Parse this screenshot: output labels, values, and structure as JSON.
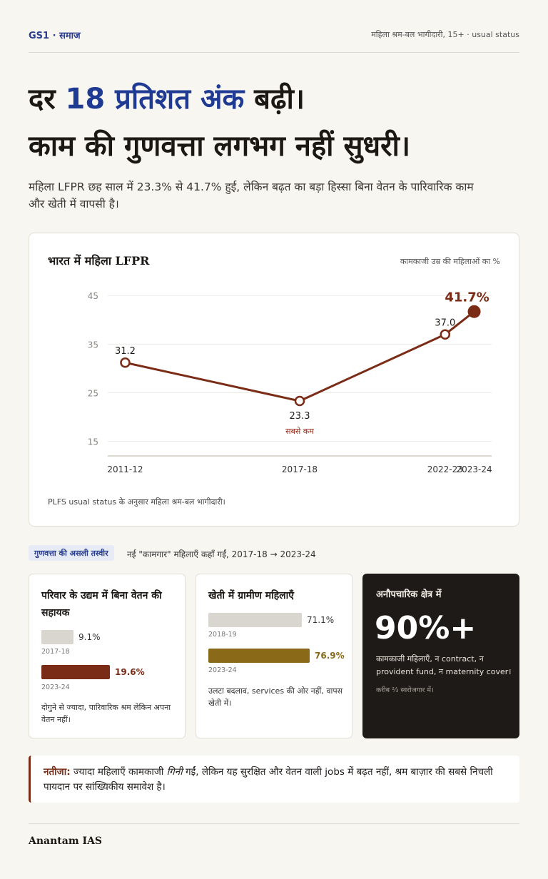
{
  "header": {
    "tag": "GS1 · समाज",
    "meta": "महिला श्रम-बल भागीदारी, 15+ · usual status"
  },
  "headline": {
    "line1_pre": "दर ",
    "line1_accent": "18 प्रतिशत अंक",
    "line1_post": " बढ़ी।",
    "line2": "काम की गुणवत्ता लगभग नहीं सुधरी।"
  },
  "subhead": "महिला LFPR छह साल में 23.3% से 41.7% हुई, लेकिन बढ़त का बड़ा हिस्सा बिना वेतन के पारिवारिक काम और खेती में वापसी है।",
  "chart_data": {
    "type": "line",
    "title": "भारत में महिला LFPR",
    "ylabel": "कामकाजी उम्र की महिलाओं का %",
    "categories": [
      "2011-12",
      "2017-18",
      "2022-23",
      "2023-24"
    ],
    "x_years": [
      2011.5,
      2017.5,
      2022.5,
      2023.5
    ],
    "series": [
      {
        "values": [
          31.2,
          23.3,
          37.0,
          41.7
        ]
      }
    ],
    "point_labels": [
      "31.2",
      "23.3",
      "37.0",
      "41.7%"
    ],
    "lowest_label": "सबसे कम",
    "yticks": [
      15,
      25,
      35,
      45
    ],
    "ylim": [
      12,
      49
    ],
    "grid": true,
    "line_color": "#7b2c17",
    "note": "PLFS usual status के अनुसार महिला श्रम-बल भागीदारी।"
  },
  "section": {
    "pill": "गुणवत्ता की असली तस्वीर",
    "caption": "नई \"कामगार\" महिलाएँ कहाँ गईं, 2017-18 → 2023-24"
  },
  "cards": {
    "family": {
      "title": "परिवार के उद्यम में बिना वेतन की सहायक",
      "old_value": 9.1,
      "old_label": "9.1%",
      "old_year": "2017-18",
      "new_value": 19.6,
      "new_label": "19.6%",
      "new_year": "2023-24",
      "note": "दोगुने से ज्यादा, पारिवारिक श्रम लेकिन अपना वेतन नहीं।",
      "old_color": "#d9d5cf",
      "new_color": "#7b2c17"
    },
    "farm": {
      "title": "खेती में ग्रामीण महिलाएँ",
      "old_value": 71.1,
      "old_label": "71.1%",
      "old_year": "2018-19",
      "new_value": 76.9,
      "new_label": "76.9%",
      "new_year": "2023-24",
      "note": "उलटा बदलाव, services की ओर नहीं, वापस खेती में।",
      "old_color": "#d9d5cf",
      "new_color": "#8a6a18"
    },
    "informal": {
      "title": "अनौपचारिक क्षेत्र में",
      "big": "90%+",
      "text": "कामकाजी महिलाएँ, न contract, न provident fund, न maternity cover।",
      "small": "करीब ⅔ स्वरोजगार में।"
    }
  },
  "callout": {
    "lead": "नतीजा:",
    "pre": " ज्यादा महिलाएँ कामकाजी ",
    "em": "गिनी",
    "post": " गईं, लेकिन यह सुरक्षित और वेतन वाली jobs में बढ़त नहीं, श्रम बाज़ार की सबसे निचली पायदान पर सांख्यिकीय समावेश है।"
  },
  "footer": {
    "brand": "Anantam IAS"
  }
}
